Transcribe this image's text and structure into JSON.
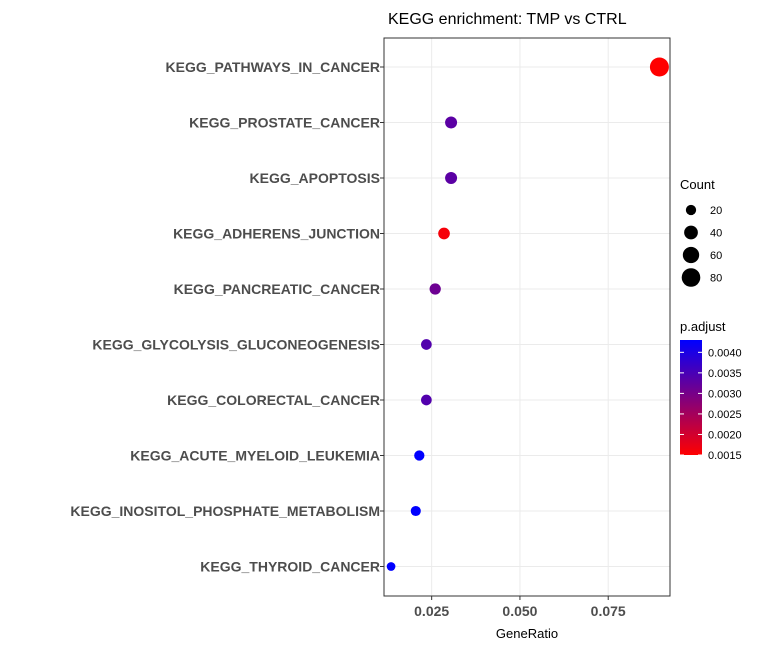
{
  "chart_data": {
    "type": "scatter",
    "title": "KEGG enrichment: TMP vs CTRL",
    "xlabel": "GeneRatio",
    "ylabel": "",
    "xlim": [
      0.0115,
      0.0925
    ],
    "x_ticks": [
      0.025,
      0.05,
      0.075
    ],
    "x_tick_labels": [
      "0.025",
      "0.050",
      "0.075"
    ],
    "grid": true,
    "categories": [
      "KEGG_PATHWAYS_IN_CANCER",
      "KEGG_PROSTATE_CANCER",
      "KEGG_APOPTOSIS",
      "KEGG_ADHERENS_JUNCTION",
      "KEGG_PANCREATIC_CANCER",
      "KEGG_GLYCOLYSIS_GLUCONEOGENESIS",
      "KEGG_COLORECTAL_CANCER",
      "KEGG_ACUTE_MYELOID_LEUKEMIA",
      "KEGG_INOSITOL_PHOSPHATE_METABOLISM",
      "KEGG_THYROID_CANCER"
    ],
    "points": [
      {
        "term": "KEGG_PATHWAYS_IN_CANCER",
        "gene_ratio": 0.0895,
        "count": 84,
        "p_adjust": 0.0015
      },
      {
        "term": "KEGG_PROSTATE_CANCER",
        "gene_ratio": 0.0305,
        "count": 29,
        "p_adjust": 0.0033
      },
      {
        "term": "KEGG_APOPTOSIS",
        "gene_ratio": 0.0305,
        "count": 29,
        "p_adjust": 0.0033
      },
      {
        "term": "KEGG_ADHERENS_JUNCTION",
        "gene_ratio": 0.0285,
        "count": 27,
        "p_adjust": 0.0016
      },
      {
        "term": "KEGG_PANCREATIC_CANCER",
        "gene_ratio": 0.026,
        "count": 25,
        "p_adjust": 0.0031
      },
      {
        "term": "KEGG_GLYCOLYSIS_GLUCONEOGENESIS",
        "gene_ratio": 0.0235,
        "count": 22,
        "p_adjust": 0.0034
      },
      {
        "term": "KEGG_COLORECTAL_CANCER",
        "gene_ratio": 0.0235,
        "count": 22,
        "p_adjust": 0.0034
      },
      {
        "term": "KEGG_ACUTE_MYELOID_LEUKEMIA",
        "gene_ratio": 0.0215,
        "count": 20,
        "p_adjust": 0.0043
      },
      {
        "term": "KEGG_INOSITOL_PHOSPHATE_METABOLISM",
        "gene_ratio": 0.0205,
        "count": 19,
        "p_adjust": 0.0043
      },
      {
        "term": "KEGG_THYROID_CANCER",
        "gene_ratio": 0.0135,
        "count": 13,
        "p_adjust": 0.0043
      }
    ],
    "size_legend": {
      "title": "Count",
      "values": [
        20,
        40,
        60,
        80
      ],
      "labels": [
        "20",
        "40",
        "60",
        "80"
      ],
      "color": "#000000"
    },
    "color_legend": {
      "title": "p.adjust",
      "range": [
        0.0015,
        0.0043
      ],
      "ticks": [
        0.004,
        0.0035,
        0.003,
        0.0025,
        0.002,
        0.0015
      ],
      "tick_labels": [
        "0.0040",
        "0.0035",
        "0.0030",
        "0.0025",
        "0.0020",
        "0.0015"
      ],
      "low_color": "#ff0000",
      "high_color": "#0000ff"
    },
    "legend_position": "right",
    "colors": {
      "panel_border": "#333333",
      "grid": "#ebebeb",
      "text": "#4d4d4d"
    }
  }
}
